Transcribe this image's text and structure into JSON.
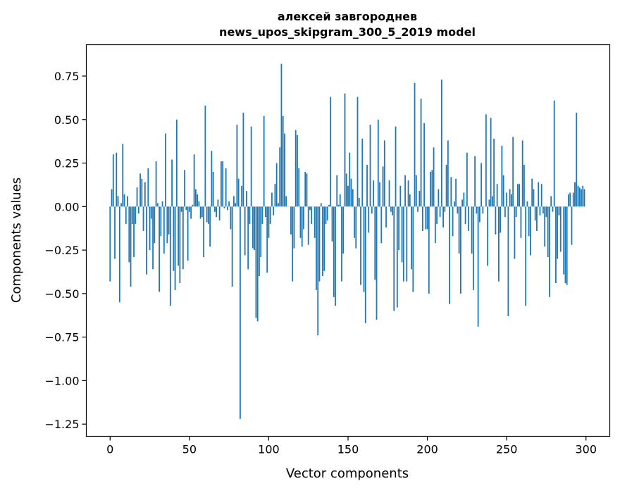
{
  "chart_data": {
    "type": "bar",
    "title": "алексей завгороднев",
    "subtitle": "news_upos_skipgram_300_5_2019 model",
    "xlabel": "Vector components",
    "ylabel": "Components values",
    "xlim": [
      -15,
      315
    ],
    "ylim": [
      -1.32,
      0.93
    ],
    "xticks": [
      0,
      50,
      100,
      150,
      200,
      250,
      300
    ],
    "xtick_labels": [
      "0",
      "50",
      "100",
      "150",
      "200",
      "250",
      "300"
    ],
    "yticks": [
      0.75,
      0.5,
      0.25,
      0,
      -0.25,
      -0.5,
      -0.75,
      -1.0,
      -1.25
    ],
    "ytick_labels": [
      "0.75",
      "0.50",
      "0.25",
      "0.00",
      "−0.25",
      "−0.50",
      "−0.75",
      "−1.00",
      "−1.25"
    ],
    "bar_color": "#1f77b4",
    "grid": false,
    "values": [
      -0.43,
      0.1,
      0.3,
      -0.3,
      0.31,
      0.06,
      -0.55,
      0.02,
      0.36,
      0.07,
      -0.1,
      0.06,
      -0.32,
      -0.46,
      -0.1,
      -0.29,
      -0.1,
      0.11,
      -0.04,
      0.19,
      0.16,
      -0.14,
      0.14,
      -0.39,
      0.22,
      -0.25,
      -0.07,
      -0.36,
      -0.21,
      0.26,
      0.02,
      -0.49,
      -0.17,
      0.03,
      -0.27,
      0.42,
      -0.21,
      -0.16,
      -0.57,
      0.27,
      -0.37,
      -0.48,
      0.5,
      -0.34,
      -0.44,
      -0.03,
      -0.36,
      0.21,
      -0.02,
      -0.31,
      -0.03,
      -0.07,
      0.01,
      0.3,
      0.1,
      0.07,
      0.03,
      -0.07,
      -0.06,
      -0.29,
      0.58,
      -0.09,
      -0.1,
      -0.23,
      0.32,
      0.2,
      -0.03,
      -0.06,
      0.04,
      -0.08,
      0.26,
      0.26,
      -0.01,
      0.22,
      -0.02,
      0.03,
      -0.13,
      -0.46,
      0.06,
      0.02,
      0.47,
      0.16,
      -1.22,
      0.12,
      0.54,
      -0.28,
      0.09,
      -0.36,
      -0.1,
      0.46,
      -0.24,
      -0.25,
      -0.64,
      -0.66,
      -0.4,
      -0.29,
      -0.1,
      0.52,
      -0.06,
      -0.38,
      -0.18,
      -0.1,
      0.08,
      -0.05,
      0.13,
      0.25,
      0.02,
      0.34,
      0.82,
      0.52,
      0.42,
      0.06,
      0.0,
      0.0,
      -0.16,
      -0.43,
      -0.24,
      0.44,
      0.41,
      0.22,
      -0.18,
      -0.23,
      -0.13,
      0.2,
      0.19,
      -0.22,
      -0.02,
      -0.1,
      0.0,
      -0.18,
      -0.48,
      -0.74,
      -0.43,
      0.02,
      -0.4,
      -0.37,
      -0.1,
      -0.08,
      0.01,
      0.63,
      -0.2,
      -0.52,
      -0.57,
      0.18,
      0.01,
      0.07,
      -0.43,
      -0.27,
      0.65,
      0.19,
      0.12,
      0.31,
      0.16,
      0.1,
      -0.18,
      -0.24,
      0.63,
      0.05,
      -0.45,
      0.39,
      -0.49,
      -0.67,
      0.24,
      -0.15,
      0.47,
      -0.04,
      0.15,
      -0.42,
      -0.65,
      0.5,
      0.14,
      -0.21,
      0.23,
      0.38,
      -0.12,
      0.0,
      0.15,
      -0.03,
      -0.05,
      -0.6,
      0.46,
      -0.58,
      -0.25,
      0.12,
      -0.32,
      -0.43,
      0.18,
      -0.43,
      0.15,
      0.07,
      -0.36,
      -0.49,
      0.71,
      0.18,
      -0.03,
      0.09,
      0.62,
      -0.14,
      0.48,
      -0.13,
      -0.13,
      -0.5,
      0.2,
      0.21,
      0.34,
      -0.21,
      -0.1,
      0.1,
      -0.06,
      0.73,
      -0.12,
      -0.03,
      0.24,
      0.38,
      -0.56,
      0.17,
      -0.17,
      0.03,
      0.16,
      -0.04,
      -0.27,
      -0.5,
      0.04,
      0.08,
      -0.1,
      0.31,
      -0.14,
      0.0,
      -0.27,
      -0.48,
      0.29,
      -0.04,
      -0.69,
      -0.09,
      0.25,
      -0.04,
      0.0,
      0.53,
      -0.34,
      0.04,
      0.51,
      0.06,
      0.39,
      -0.16,
      0.13,
      -0.43,
      -0.15,
      0.35,
      0.18,
      -0.06,
      0.08,
      -0.63,
      0.1,
      0.07,
      0.4,
      -0.3,
      -0.06,
      0.13,
      0.13,
      -0.18,
      0.38,
      0.24,
      -0.57,
      0.03,
      -0.17,
      -0.28,
      0.16,
      0.1,
      -0.08,
      -0.14,
      0.14,
      -0.05,
      0.13,
      -0.04,
      -0.23,
      -0.06,
      -0.29,
      -0.52,
      0.06,
      -0.03,
      0.61,
      -0.44,
      -0.3,
      -0.05,
      -0.26,
      0.0,
      -0.39,
      -0.44,
      -0.45,
      0.07,
      0.08,
      -0.22,
      0.08,
      0.14,
      0.54,
      0.12,
      0.11,
      0.1,
      0.12,
      0.1
    ]
  }
}
